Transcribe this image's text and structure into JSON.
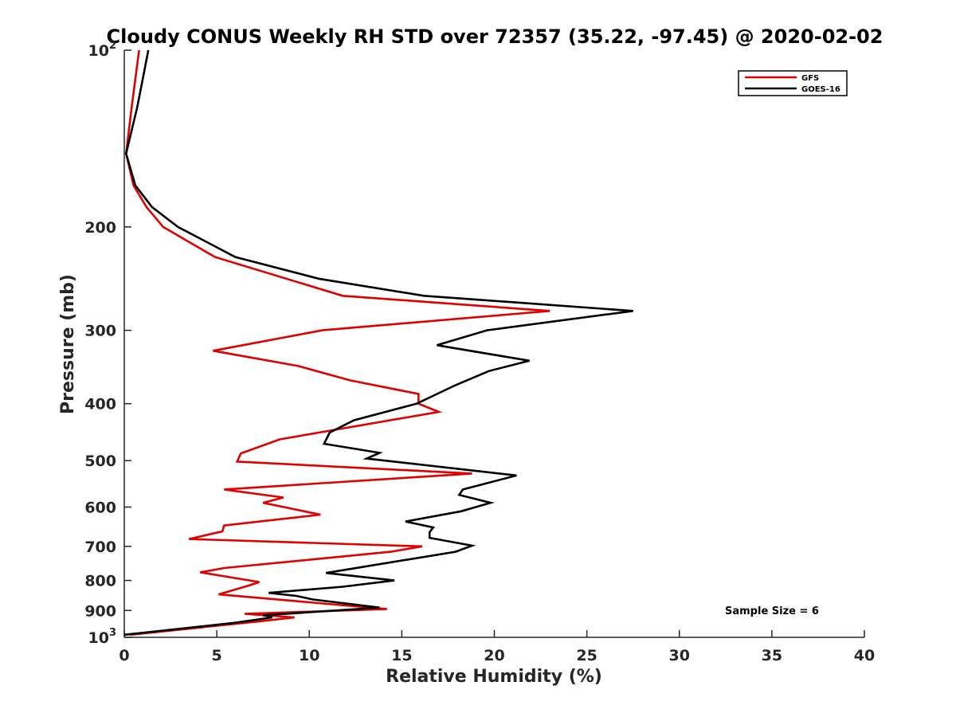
{
  "chart_data": {
    "type": "line",
    "title": "Cloudy CONUS Weekly RH STD over 72357 (35.22, -97.45) @ 2020-02-02",
    "xlabel": "Relative Humidity (%)",
    "ylabel": "Pressure (mb)",
    "xlim": [
      0,
      40
    ],
    "ylim": [
      100,
      1000
    ],
    "y_scale": "log",
    "y_reversed": true,
    "grid": false,
    "legend_position": "top-right",
    "x_ticks": [
      "0",
      "5",
      "10",
      "15",
      "20",
      "25",
      "30",
      "35",
      "40"
    ],
    "x_tick_values": [
      0,
      5,
      10,
      15,
      20,
      25,
      30,
      35,
      40
    ],
    "y_ticks": [
      {
        "value": 100,
        "base": "10",
        "exp": "2"
      },
      {
        "value": 200,
        "base": "200",
        "exp": ""
      },
      {
        "value": 300,
        "base": "300",
        "exp": ""
      },
      {
        "value": 400,
        "base": "400",
        "exp": ""
      },
      {
        "value": 500,
        "base": "500",
        "exp": ""
      },
      {
        "value": 600,
        "base": "600",
        "exp": ""
      },
      {
        "value": 700,
        "base": "700",
        "exp": ""
      },
      {
        "value": 800,
        "base": "800",
        "exp": ""
      },
      {
        "value": 900,
        "base": "900",
        "exp": ""
      },
      {
        "value": 1000,
        "base": "10",
        "exp": "3"
      }
    ],
    "series": [
      {
        "name": "GFS",
        "color": "#e00000",
        "points": [
          [
            0.8,
            100
          ],
          [
            0.4,
            125
          ],
          [
            0.1,
            150
          ],
          [
            0.5,
            170
          ],
          [
            1.2,
            185
          ],
          [
            2.1,
            200
          ],
          [
            4.9,
            225
          ],
          [
            11.8,
            262
          ],
          [
            23.0,
            278
          ],
          [
            10.7,
            300
          ],
          [
            4.8,
            325
          ],
          [
            9.4,
            345
          ],
          [
            12.2,
            365
          ],
          [
            15.9,
            385
          ],
          [
            15.9,
            400
          ],
          [
            17.0,
            413
          ],
          [
            8.4,
            460
          ],
          [
            6.3,
            486
          ],
          [
            6.1,
            502
          ],
          [
            18.8,
            526
          ],
          [
            5.4,
            560
          ],
          [
            8.6,
            578
          ],
          [
            7.5,
            590
          ],
          [
            10.6,
            618
          ],
          [
            5.4,
            645
          ],
          [
            5.3,
            660
          ],
          [
            3.5,
            680
          ],
          [
            16.1,
            700
          ],
          [
            14.4,
            715
          ],
          [
            5.4,
            762
          ],
          [
            4.1,
            775
          ],
          [
            7.3,
            805
          ],
          [
            6.8,
            815
          ],
          [
            5.1,
            845
          ],
          [
            14.2,
            895
          ],
          [
            6.5,
            912
          ],
          [
            9.2,
            925
          ],
          [
            7.2,
            940
          ],
          [
            0.3,
            990
          ]
        ]
      },
      {
        "name": "GOES-16",
        "color": "#000000",
        "points": [
          [
            1.3,
            100
          ],
          [
            0.7,
            125
          ],
          [
            0.1,
            150
          ],
          [
            0.6,
            170
          ],
          [
            1.5,
            185
          ],
          [
            2.9,
            200
          ],
          [
            6.0,
            225
          ],
          [
            10.5,
            245
          ],
          [
            16.2,
            262
          ],
          [
            27.5,
            278
          ],
          [
            19.6,
            300
          ],
          [
            16.9,
            318
          ],
          [
            21.9,
            338
          ],
          [
            19.7,
            352
          ],
          [
            17.9,
            372
          ],
          [
            15.8,
            400
          ],
          [
            12.4,
            427
          ],
          [
            11.1,
            448
          ],
          [
            10.8,
            468
          ],
          [
            13.8,
            485
          ],
          [
            13.1,
            496
          ],
          [
            21.2,
            530
          ],
          [
            18.3,
            560
          ],
          [
            18.1,
            572
          ],
          [
            19.8,
            590
          ],
          [
            18.2,
            610
          ],
          [
            15.2,
            635
          ],
          [
            16.7,
            650
          ],
          [
            16.5,
            662
          ],
          [
            16.5,
            677
          ],
          [
            18.8,
            698
          ],
          [
            17.9,
            715
          ],
          [
            10.9,
            777
          ],
          [
            14.6,
            800
          ],
          [
            11.8,
            820
          ],
          [
            7.8,
            840
          ],
          [
            9.3,
            850
          ],
          [
            10.2,
            862
          ],
          [
            13.8,
            890
          ],
          [
            7.5,
            917
          ],
          [
            8.0,
            925
          ],
          [
            5.9,
            945
          ],
          [
            0.0,
            990
          ]
        ]
      }
    ],
    "legend": [
      {
        "label": "GFS",
        "color": "#e00000"
      },
      {
        "label": "GOES-16",
        "color": "#000000"
      }
    ],
    "annotation": "Sample Size = 6"
  }
}
